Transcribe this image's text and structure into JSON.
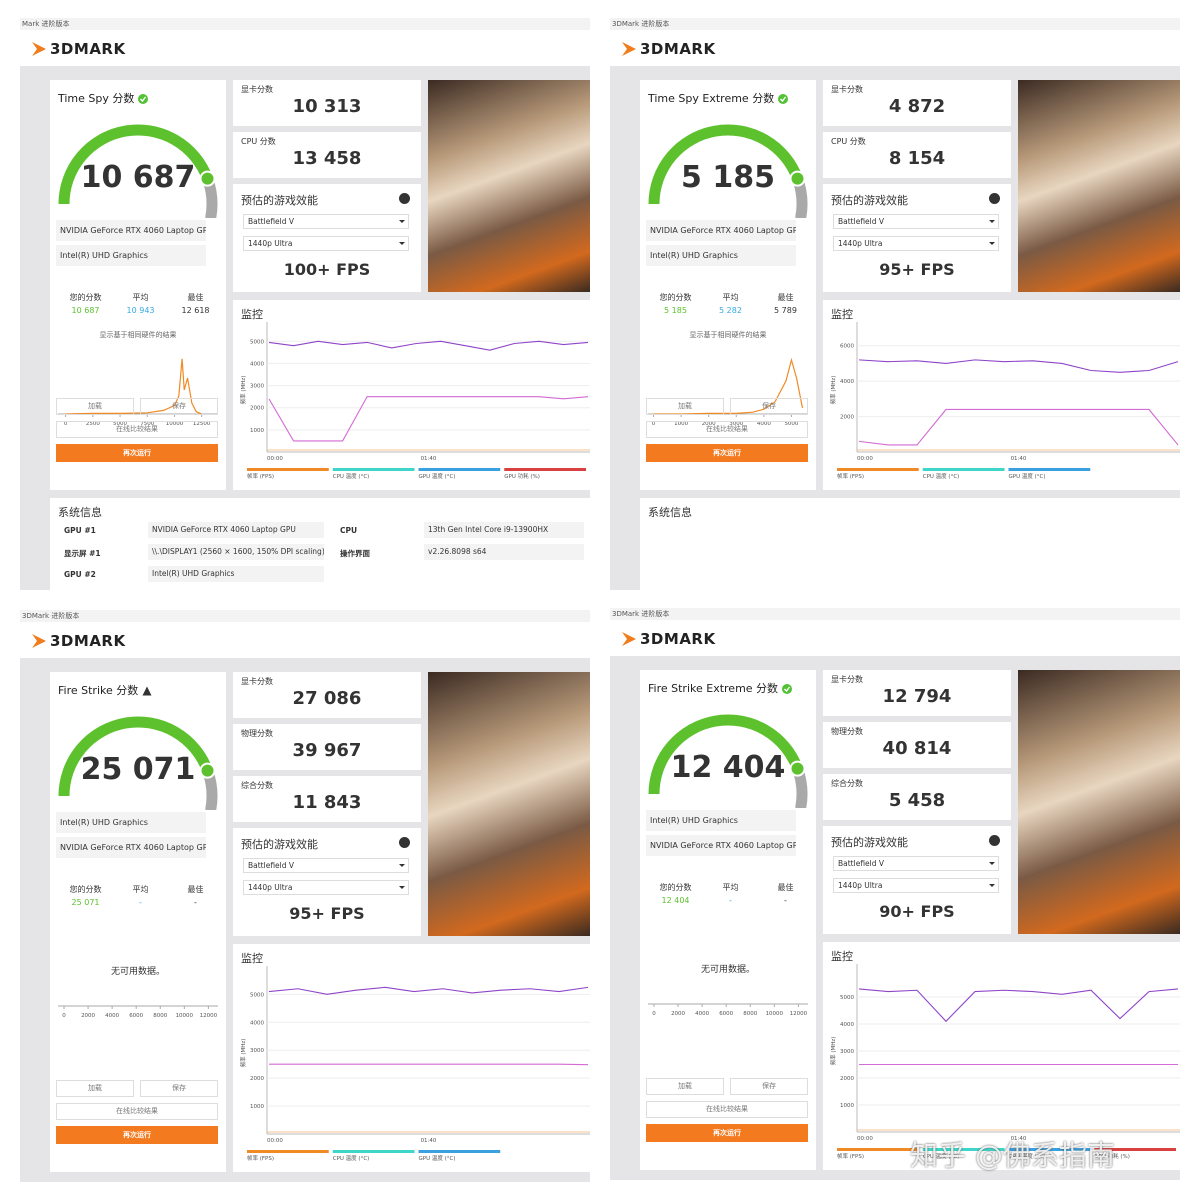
{
  "panels": [
    {
      "window_title": "Mark 进阶版本",
      "logo": "3DMARK",
      "test": "Time Spy 分数",
      "badge": "ok",
      "score": "10 687",
      "subscores": [
        {
          "label": "显卡分数",
          "value": "10 313"
        },
        {
          "label": "CPU 分数",
          "value": "13 458"
        }
      ],
      "perf": {
        "title": "预估的游戏效能",
        "game": "Battlefield V",
        "preset": "1440p Ultra",
        "fps": "100+ FPS"
      },
      "gpus": [
        "NVIDIA GeForce RTX 4060 Laptop GPU",
        "Intel(R) UHD Graphics"
      ],
      "compare": {
        "labels": [
          "您的分数",
          "平均",
          "最佳"
        ],
        "values": [
          "10 687",
          "10 943",
          "12 618"
        ]
      },
      "dist": {
        "caption": "显示基于相同硬件的结果",
        "xlim": [
          -700,
          14000
        ],
        "xticks": [
          0,
          2500,
          5000,
          7500,
          10000,
          12500
        ],
        "ylim": [
          0,
          100
        ],
        "x": [
          0,
          2500,
          5000,
          7500,
          9000,
          10000,
          10400,
          10700,
          10900,
          11200,
          11600,
          12000,
          12500
        ],
        "values": [
          0,
          1,
          1,
          2,
          6,
          14,
          30,
          92,
          40,
          60,
          18,
          4,
          0
        ]
      },
      "buttons": [
        "加载",
        "保存",
        "在线比较结果",
        "再次运行"
      ],
      "monitor": {
        "title": "监控",
        "y_label": "频率 (MHz)",
        "ylim": [
          0,
          5600
        ],
        "yticks": [
          1000,
          2000,
          3000,
          4000,
          5000
        ],
        "xticks": [
          "00:00",
          "01:40"
        ],
        "series": [
          {
            "color": "#8e44c8",
            "values": [
              4950,
              4800,
              5000,
              4850,
              4950,
              4700,
              4900,
              5000,
              4800,
              4600,
              4900,
              5000,
              4850,
              4950
            ]
          },
          {
            "color": "#d46ad4",
            "values": [
              2400,
              500,
              500,
              500,
              2500,
              2500,
              2500,
              2500,
              2500,
              2500,
              2500,
              2500,
              2400,
              2500
            ]
          }
        ],
        "legend": [
          {
            "label": "帧率 (FPS)",
            "color": "#f08a24"
          },
          {
            "label": "CPU 温度 (°C)",
            "color": "#3dd6c8"
          },
          {
            "label": "GPU 温度 (°C)",
            "color": "#3aa0e0"
          },
          {
            "label": "GPU 功耗 (%)",
            "color": "#d94040"
          }
        ]
      },
      "sysinfo": {
        "title": "系统信息",
        "left": [
          [
            "GPU #1",
            "NVIDIA GeForce RTX 4060 Laptop GPU"
          ],
          [
            "显示屏 #1",
            "\\\\.\\DISPLAY1 (2560 × 1600, 150% DPI scaling)"
          ],
          [
            "GPU #2",
            "Intel(R) UHD Graphics"
          ]
        ],
        "right": [
          [
            "CPU",
            "13th Gen Intel Core i9-13900HX"
          ],
          [
            "操作界面",
            "v2.26.8098 s64"
          ]
        ]
      }
    },
    {
      "window_title": "3DMark 进阶版本",
      "logo": "3DMARK",
      "test": "Time Spy Extreme 分数",
      "badge": "ok",
      "score": "5 185",
      "subscores": [
        {
          "label": "显卡分数",
          "value": "4 872"
        },
        {
          "label": "CPU 分数",
          "value": "8 154"
        }
      ],
      "perf": {
        "title": "预估的游戏效能",
        "game": "Battlefield V",
        "preset": "1440p Ultra",
        "fps": "95+ FPS"
      },
      "gpus": [
        "NVIDIA GeForce RTX 4060 Laptop GPU",
        "Intel(R) UHD Graphics"
      ],
      "compare": {
        "labels": [
          "您的分数",
          "平均",
          "最佳"
        ],
        "values": [
          "5 185",
          "5 282",
          "5 789"
        ]
      },
      "dist": {
        "caption": "显示基于相同硬件的结果",
        "xlim": [
          -200,
          5600
        ],
        "xticks": [
          0,
          1000,
          2000,
          3000,
          4000,
          5000
        ],
        "ylim": [
          0,
          100
        ],
        "x": [
          0,
          1000,
          2000,
          3000,
          3600,
          4000,
          4400,
          4800,
          5000,
          5185,
          5400
        ],
        "values": [
          0,
          0,
          1,
          1,
          3,
          8,
          20,
          55,
          90,
          60,
          10
        ]
      },
      "buttons": [
        "加载",
        "保存",
        "在线比较结果",
        "再次运行"
      ],
      "monitor": {
        "title": "监控",
        "y_label": "频率 (MHz)",
        "ylim": [
          0,
          7000
        ],
        "yticks": [
          2000,
          4000,
          6000
        ],
        "xticks": [
          "00:00",
          "01:40"
        ],
        "series": [
          {
            "color": "#8e44c8",
            "values": [
              5200,
              5100,
              5150,
              5000,
              5200,
              5100,
              5150,
              5000,
              4600,
              4500,
              4600,
              5100
            ]
          },
          {
            "color": "#d46ad4",
            "values": [
              600,
              400,
              400,
              2400,
              2400,
              2400,
              2400,
              2400,
              2400,
              2400,
              2400,
              400
            ]
          }
        ],
        "legend": [
          {
            "label": "帧率 (FPS)",
            "color": "#f08a24"
          },
          {
            "label": "CPU 温度 (°C)",
            "color": "#3dd6c8"
          },
          {
            "label": "GPU 温度 (°C)",
            "color": "#3aa0e0"
          }
        ]
      },
      "sysinfo": {
        "title": "系统信息",
        "left": [],
        "right": []
      }
    },
    {
      "window_title": "3DMark 进阶版本",
      "logo": "3DMARK",
      "test": "Fire Strike 分数",
      "badge": "warn",
      "score": "25 071",
      "subscores": [
        {
          "label": "显卡分数",
          "value": "27 086"
        },
        {
          "label": "物理分数",
          "value": "39 967"
        },
        {
          "label": "综合分数",
          "value": "11 843"
        }
      ],
      "perf": {
        "title": "预估的游戏效能",
        "game": "Battlefield V",
        "preset": "1440p Ultra",
        "fps": "95+ FPS"
      },
      "gpus": [
        "Intel(R) UHD Graphics",
        "NVIDIA GeForce RTX 4060 Laptop GPU"
      ],
      "compare": {
        "labels": [
          "您的分数",
          "平均",
          "最佳"
        ],
        "values": [
          "25 071",
          "-",
          "-"
        ]
      },
      "dist": {
        "no_data": "无可用数据。",
        "xlim": [
          -500,
          12800
        ],
        "xticks": [
          0,
          2000,
          4000,
          6000,
          8000,
          10000,
          12000
        ]
      },
      "buttons": [
        "加载",
        "保存",
        "在线比较结果",
        "再次运行"
      ],
      "monitor": {
        "title": "监控",
        "y_label": "频率 (MHz)",
        "ylim": [
          0,
          5800
        ],
        "yticks": [
          1000,
          2000,
          3000,
          4000,
          5000
        ],
        "xticks": [
          "00:00",
          "01:40"
        ],
        "series": [
          {
            "color": "#8e44c8",
            "values": [
              5100,
              5200,
              5000,
              5150,
              5250,
              5100,
              5200,
              5050,
              5150,
              5200,
              5100,
              5250
            ]
          },
          {
            "color": "#d46ad4",
            "values": [
              2500,
              2500,
              2500,
              2500,
              2500,
              2500,
              2500,
              2500,
              2500,
              2500,
              2500,
              2480
            ]
          }
        ],
        "legend": [
          {
            "label": "帧率 (FPS)",
            "color": "#f08a24"
          },
          {
            "label": "CPU 温度 (°C)",
            "color": "#3dd6c8"
          },
          {
            "label": "GPU 温度 (°C)",
            "color": "#3aa0e0"
          }
        ]
      }
    },
    {
      "window_title": "3DMark 进阶版本",
      "logo": "3DMARK",
      "test": "Fire Strike Extreme 分数",
      "badge": "ok",
      "score": "12 404",
      "subscores": [
        {
          "label": "显卡分数",
          "value": "12 794"
        },
        {
          "label": "物理分数",
          "value": "40 814"
        },
        {
          "label": "综合分数",
          "value": "5 458"
        }
      ],
      "perf": {
        "title": "预估的游戏效能",
        "game": "Battlefield V",
        "preset": "1440p Ultra",
        "fps": "90+ FPS"
      },
      "gpus": [
        "Intel(R) UHD Graphics",
        "NVIDIA GeForce RTX 4060 Laptop GPU"
      ],
      "compare": {
        "labels": [
          "您的分数",
          "平均",
          "最佳"
        ],
        "values": [
          "12 404",
          "-",
          "-"
        ]
      },
      "dist": {
        "no_data": "无可用数据。",
        "xlim": [
          -500,
          12800
        ],
        "xticks": [
          0,
          2000,
          4000,
          6000,
          8000,
          10000,
          12000
        ]
      },
      "buttons": [
        "加载",
        "保存",
        "在线比较结果",
        "再次运行"
      ],
      "monitor": {
        "title": "监控",
        "y_label": "频率 (MHz)",
        "ylim": [
          0,
          6000
        ],
        "yticks": [
          1000,
          2000,
          3000,
          4000,
          5000
        ],
        "xticks": [
          "00:00",
          "01:40"
        ],
        "series": [
          {
            "color": "#8e44c8",
            "values": [
              5300,
              5200,
              5250,
              4100,
              5200,
              5250,
              5200,
              5100,
              5250,
              4200,
              5200,
              5300
            ]
          },
          {
            "color": "#d46ad4",
            "values": [
              2500,
              2500,
              2500,
              2500,
              2500,
              2500,
              2500,
              2500,
              2500,
              2500,
              2500,
              2500
            ]
          }
        ],
        "legend": [
          {
            "label": "帧率 (FPS)",
            "color": "#f08a24"
          },
          {
            "label": "CPU 温度 (°C)",
            "color": "#3dd6c8"
          },
          {
            "label": "GPU 温度 (°C)",
            "color": "#3aa0e0"
          },
          {
            "label": "GPU 功耗 (%)",
            "color": "#d94040"
          }
        ]
      }
    }
  ],
  "watermark": "知乎 @佛系指南"
}
